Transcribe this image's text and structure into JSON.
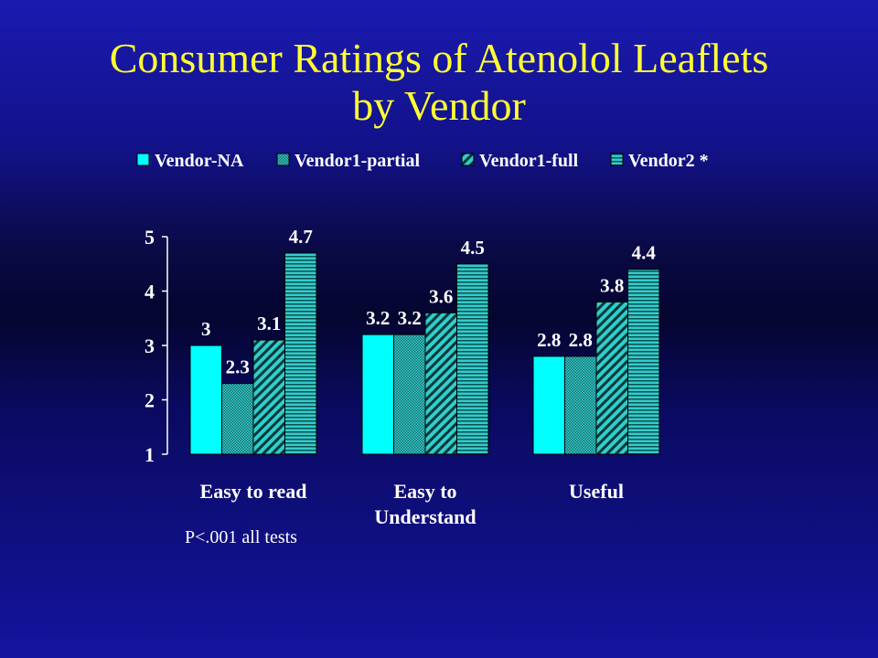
{
  "title_line1": "Consumer Ratings of Atenolol Leaflets",
  "title_line2": "by Vendor",
  "note": "P<.001 all tests",
  "colors": {
    "vendor_na": "#00ffff",
    "vendor1_partial": "#33cccc",
    "vendor1_full": "#33cccc",
    "vendor2": "#33cccc"
  },
  "chart_data": {
    "type": "bar",
    "categories": [
      [
        "Easy to read"
      ],
      [
        "Easy to",
        "Understand"
      ],
      [
        "Useful"
      ]
    ],
    "series": [
      {
        "name": "Vendor-NA",
        "pattern": "solid",
        "values": [
          3,
          3.2,
          2.8
        ],
        "labels": [
          "3",
          "3.2",
          "2.8"
        ]
      },
      {
        "name": "Vendor1-partial",
        "pattern": "checker",
        "values": [
          2.3,
          3.2,
          2.8
        ],
        "labels": [
          "2.3",
          "3.2",
          "2.8"
        ]
      },
      {
        "name": "Vendor1-full",
        "pattern": "diagonal",
        "values": [
          3.1,
          3.6,
          3.8
        ],
        "labels": [
          "3.1",
          "3.6",
          "3.8"
        ]
      },
      {
        "name": "Vendor2 *",
        "pattern": "horizontal",
        "values": [
          4.7,
          4.5,
          4.4
        ],
        "labels": [
          "4.7",
          "4.5",
          "4.4"
        ]
      }
    ],
    "ylim": [
      1,
      5
    ],
    "yticks": [
      "1",
      "2",
      "3",
      "4",
      "5"
    ],
    "grid": false,
    "legend": "top"
  }
}
